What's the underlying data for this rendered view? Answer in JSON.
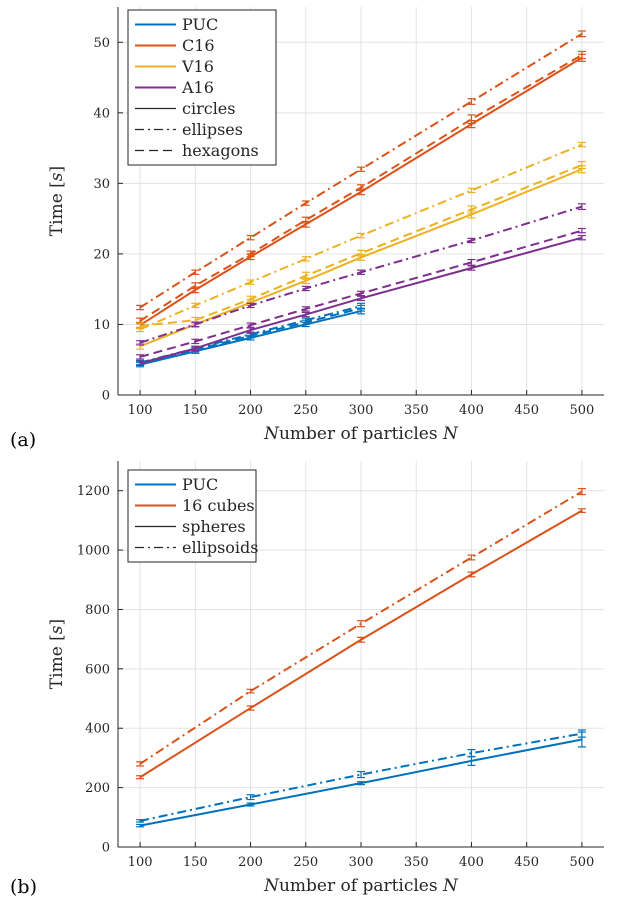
{
  "chart_data": [
    {
      "type": "line",
      "panel_label": "(a)",
      "xlabel": "Number of particles N",
      "ylabel": "Time [s]",
      "xlim": [
        80,
        520
      ],
      "ylim": [
        0,
        55
      ],
      "xticks": [
        100,
        150,
        200,
        250,
        300,
        350,
        400,
        450,
        500
      ],
      "yticks": [
        0,
        10,
        20,
        30,
        40,
        50
      ],
      "grid": true,
      "legend_position": "top-left",
      "legend": [
        {
          "label": "PUC",
          "color": "#0072BD",
          "style": "solid"
        },
        {
          "label": "C16",
          "color": "#D95319",
          "style": "solid"
        },
        {
          "label": "V16",
          "color": "#EDB120",
          "style": "solid"
        },
        {
          "label": "A16",
          "color": "#7E2F8E",
          "style": "solid"
        },
        {
          "label": "circles",
          "color": "#262626",
          "style": "solid"
        },
        {
          "label": "ellipses",
          "color": "#262626",
          "style": "dashdot"
        },
        {
          "label": "hexagons",
          "color": "#262626",
          "style": "dashed"
        }
      ],
      "series": [
        {
          "name": "PUC",
          "shape": "circles",
          "color": "#0072BD",
          "style": "solid",
          "x": [
            100,
            150,
            200,
            250,
            300
          ],
          "y": [
            4.3,
            6.2,
            8.1,
            10.0,
            11.9
          ],
          "err": [
            0.3,
            0.3,
            0.3,
            0.3,
            0.4
          ]
        },
        {
          "name": "PUC",
          "shape": "ellipses",
          "color": "#0072BD",
          "style": "dashdot",
          "x": [
            100,
            150,
            200,
            250,
            300
          ],
          "y": [
            4.6,
            6.6,
            8.6,
            10.6,
            12.6
          ],
          "err": [
            0.3,
            0.3,
            0.3,
            0.3,
            0.4
          ]
        },
        {
          "name": "PUC",
          "shape": "hexagons",
          "color": "#0072BD",
          "style": "dashed",
          "x": [
            100,
            150,
            200,
            250,
            300
          ],
          "y": [
            4.5,
            6.4,
            8.4,
            10.3,
            12.3
          ],
          "err": [
            0.3,
            0.3,
            0.3,
            0.3,
            0.4
          ]
        },
        {
          "name": "C16",
          "shape": "circles",
          "color": "#D95319",
          "style": "solid",
          "x": [
            100,
            150,
            200,
            250,
            300,
            400,
            500
          ],
          "y": [
            9.9,
            14.9,
            19.6,
            24.2,
            28.8,
            38.4,
            47.8
          ],
          "err": [
            0.4,
            0.4,
            0.4,
            0.4,
            0.4,
            0.5,
            0.5
          ]
        },
        {
          "name": "C16",
          "shape": "ellipses",
          "color": "#D95319",
          "style": "dashdot",
          "x": [
            100,
            150,
            200,
            250,
            300,
            400,
            500
          ],
          "y": [
            12.4,
            17.4,
            22.3,
            27.2,
            32.0,
            41.6,
            51.2
          ],
          "err": [
            0.3,
            0.3,
            0.3,
            0.3,
            0.3,
            0.4,
            0.4
          ]
        },
        {
          "name": "C16",
          "shape": "hexagons",
          "color": "#D95319",
          "style": "dashed",
          "x": [
            100,
            150,
            200,
            250,
            300,
            400,
            500
          ],
          "y": [
            10.5,
            15.5,
            20.0,
            24.8,
            29.4,
            39.1,
            48.2
          ],
          "err": [
            0.4,
            0.4,
            0.4,
            0.4,
            0.4,
            0.6,
            0.5
          ]
        },
        {
          "name": "V16",
          "shape": "circles",
          "color": "#EDB120",
          "style": "solid",
          "x": [
            100,
            150,
            200,
            250,
            300,
            400,
            500
          ],
          "y": [
            6.9,
            10.0,
            13.1,
            16.2,
            19.5,
            25.6,
            32.0
          ],
          "err": [
            0.4,
            0.4,
            0.4,
            0.4,
            0.4,
            0.5,
            0.5
          ]
        },
        {
          "name": "V16",
          "shape": "ellipses",
          "color": "#EDB120",
          "style": "dashdot",
          "x": [
            100,
            150,
            200,
            250,
            300,
            400,
            500
          ],
          "y": [
            9.3,
            12.7,
            16.0,
            19.3,
            22.6,
            29.0,
            35.5
          ],
          "err": [
            0.3,
            0.3,
            0.3,
            0.3,
            0.3,
            0.3,
            0.3
          ]
        },
        {
          "name": "V16",
          "shape": "hexagons",
          "color": "#EDB120",
          "style": "dashed",
          "x": [
            100,
            150,
            200,
            250,
            300,
            400,
            500
          ],
          "y": [
            9.8,
            10.6,
            13.6,
            16.9,
            20.1,
            26.3,
            32.6
          ],
          "err": [
            0.4,
            0.4,
            0.4,
            0.5,
            0.4,
            0.5,
            0.5
          ]
        },
        {
          "name": "A16",
          "shape": "circles",
          "color": "#7E2F8E",
          "style": "solid",
          "x": [
            100,
            150,
            200,
            250,
            300,
            400,
            500
          ],
          "y": [
            4.5,
            6.6,
            9.2,
            11.4,
            13.7,
            18.0,
            22.3
          ],
          "err": [
            0.3,
            0.3,
            0.3,
            0.3,
            0.3,
            0.3,
            0.3
          ]
        },
        {
          "name": "A16",
          "shape": "ellipses",
          "color": "#7E2F8E",
          "style": "dashdot",
          "x": [
            100,
            150,
            200,
            250,
            300,
            400,
            500
          ],
          "y": [
            7.4,
            10.0,
            12.7,
            15.1,
            17.4,
            21.9,
            26.7
          ],
          "err": [
            0.3,
            0.3,
            0.3,
            0.3,
            0.3,
            0.3,
            0.4
          ]
        },
        {
          "name": "A16",
          "shape": "hexagons",
          "color": "#7E2F8E",
          "style": "dashed",
          "x": [
            100,
            150,
            200,
            250,
            300,
            400,
            500
          ],
          "y": [
            5.4,
            7.6,
            9.9,
            12.2,
            14.4,
            18.8,
            23.3
          ],
          "err": [
            0.3,
            0.3,
            0.3,
            0.3,
            0.3,
            0.4,
            0.3
          ]
        }
      ]
    },
    {
      "type": "line",
      "panel_label": "(b)",
      "xlabel": "Number of particles N",
      "ylabel": "Time [s]",
      "xlim": [
        80,
        520
      ],
      "ylim": [
        0,
        1300
      ],
      "xticks": [
        100,
        150,
        200,
        250,
        300,
        350,
        400,
        450,
        500
      ],
      "yticks": [
        0,
        200,
        400,
        600,
        800,
        1000,
        1200
      ],
      "grid": true,
      "legend_position": "top-left",
      "legend": [
        {
          "label": "PUC",
          "color": "#0072BD",
          "style": "solid"
        },
        {
          "label": "16 cubes",
          "color": "#D95319",
          "style": "solid"
        },
        {
          "label": "spheres",
          "color": "#262626",
          "style": "solid"
        },
        {
          "label": "ellipsoids",
          "color": "#262626",
          "style": "dashdot"
        }
      ],
      "series": [
        {
          "name": "PUC",
          "shape": "spheres",
          "color": "#0072BD",
          "style": "solid",
          "x": [
            100,
            200,
            300,
            400,
            500
          ],
          "y": [
            72,
            143,
            215,
            290,
            362
          ],
          "err": [
            4,
            5,
            5,
            15,
            25
          ]
        },
        {
          "name": "PUC",
          "shape": "ellipsoids",
          "color": "#0072BD",
          "style": "dashdot",
          "x": [
            100,
            200,
            300,
            400,
            500
          ],
          "y": [
            88,
            168,
            244,
            316,
            382
          ],
          "err": [
            4,
            8,
            10,
            12,
            12
          ]
        },
        {
          "name": "16 cubes",
          "shape": "spheres",
          "color": "#D95319",
          "style": "solid",
          "x": [
            100,
            200,
            300,
            400,
            500
          ],
          "y": [
            235,
            468,
            698,
            918,
            1133
          ],
          "err": [
            5,
            7,
            8,
            8,
            6
          ]
        },
        {
          "name": "16 cubes",
          "shape": "ellipsoids",
          "color": "#D95319",
          "style": "dashdot",
          "x": [
            100,
            200,
            300,
            400,
            500
          ],
          "y": [
            280,
            525,
            752,
            975,
            1197
          ],
          "err": [
            7,
            6,
            10,
            8,
            10
          ]
        }
      ]
    }
  ]
}
